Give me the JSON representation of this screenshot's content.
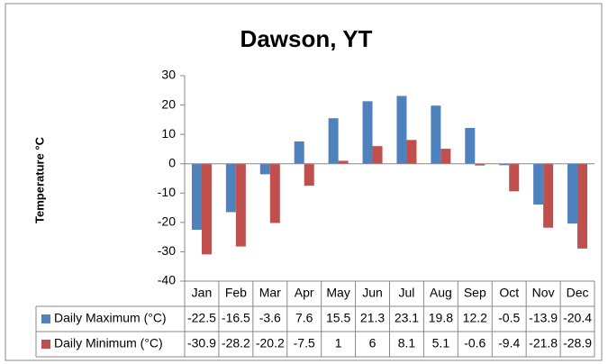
{
  "chart_data": {
    "type": "bar",
    "title": "Dawson, YT",
    "y_label": "Temperature °C",
    "categories": [
      "Jan",
      "Feb",
      "Mar",
      "Apr",
      "May",
      "Jun",
      "Jul",
      "Aug",
      "Sep",
      "Oct",
      "Nov",
      "Dec"
    ],
    "series": [
      {
        "name": "Daily Maximum (°C)",
        "color": "#4f81bd",
        "values": [
          -22.5,
          -16.5,
          -3.6,
          7.6,
          15.5,
          21.3,
          23.1,
          19.8,
          12.2,
          -0.5,
          -13.9,
          -20.4
        ]
      },
      {
        "name": "Daily Minimum (°C)",
        "color": "#c0504d",
        "values": [
          -30.9,
          -28.2,
          -20.2,
          -7.5,
          1,
          6,
          8.1,
          5.1,
          -0.6,
          -9.4,
          -21.8,
          -28.9
        ]
      }
    ],
    "ylim": [
      -40,
      30
    ],
    "yticks": [
      -40,
      -30,
      -20,
      -10,
      0,
      10,
      20,
      30
    ],
    "grid": false,
    "data_table": true
  }
}
